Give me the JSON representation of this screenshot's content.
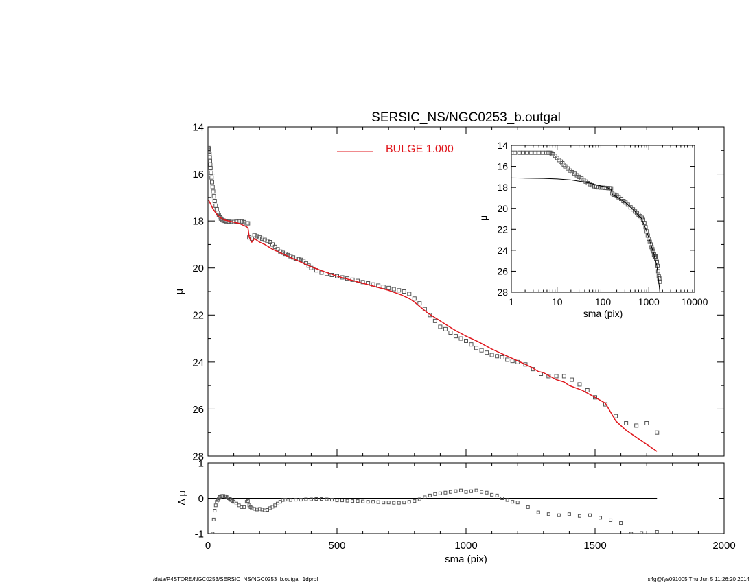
{
  "footer": {
    "path": "/data/P4STORE/NGC0253/SERSIC_NS/NGC0253_b.outgal_1dprof",
    "stamp": "s4g@fys091005  Thu Jun  5 11:26:20 2014"
  },
  "colors": {
    "axes": "#000000",
    "points": "#555555",
    "model": "#e0151b",
    "legend_text": "#e0151b"
  },
  "chart_data": [
    {
      "type": "scatter",
      "title": "SERSIC_NS/NGC0253_b.outgal",
      "xlabel": "",
      "ylabel": "μ",
      "xlim": [
        0,
        2000
      ],
      "ylim": [
        28,
        14
      ],
      "y_reversed": true,
      "x_ticks": [
        0,
        500,
        1000,
        1500,
        2000
      ],
      "y_ticks": [
        14,
        16,
        18,
        20,
        22,
        24,
        26,
        28
      ],
      "show_x_tick_labels": false,
      "grid": false,
      "legend": {
        "placement": "top-center",
        "entries": [
          {
            "label": "BULGE  1.000",
            "color": "#e0151b"
          }
        ]
      },
      "series": [
        {
          "style": "open-square-markers",
          "x": [
            2,
            3,
            4,
            5,
            6,
            7,
            8,
            9,
            10,
            12,
            14,
            16,
            18,
            20,
            23,
            26,
            30,
            34,
            38,
            42,
            46,
            50,
            55,
            60,
            65,
            70,
            80,
            90,
            100,
            110,
            120,
            130,
            140,
            150,
            155,
            160,
            170,
            180,
            190,
            200,
            210,
            220,
            230,
            240,
            250,
            260,
            270,
            280,
            290,
            300,
            310,
            320,
            330,
            340,
            350,
            360,
            370,
            380,
            390,
            400,
            420,
            440,
            460,
            480,
            500,
            520,
            540,
            560,
            580,
            600,
            620,
            640,
            660,
            680,
            700,
            720,
            740,
            760,
            780,
            800,
            820,
            840,
            860,
            880,
            900,
            920,
            940,
            960,
            980,
            1000,
            1020,
            1040,
            1060,
            1080,
            1100,
            1120,
            1140,
            1160,
            1180,
            1200,
            1230,
            1260,
            1290,
            1320,
            1350,
            1380,
            1410,
            1440,
            1470,
            1500,
            1540,
            1580,
            1620,
            1660,
            1700,
            1740
          ],
          "y": [
            14.9,
            14.95,
            15.0,
            15.05,
            15.15,
            15.3,
            15.45,
            15.6,
            15.75,
            15.95,
            16.15,
            16.35,
            16.55,
            16.75,
            16.95,
            17.15,
            17.35,
            17.5,
            17.65,
            17.75,
            17.85,
            17.9,
            17.95,
            17.98,
            18.0,
            18.02,
            18.03,
            18.04,
            18.04,
            18.03,
            18.02,
            18.02,
            18.05,
            18.1,
            18.1,
            18.7,
            18.75,
            18.6,
            18.65,
            18.7,
            18.75,
            18.8,
            18.85,
            18.9,
            19.0,
            19.1,
            19.2,
            19.3,
            19.35,
            19.4,
            19.45,
            19.5,
            19.55,
            19.6,
            19.62,
            19.65,
            19.7,
            19.8,
            19.9,
            20.0,
            20.1,
            20.2,
            20.25,
            20.3,
            20.35,
            20.4,
            20.45,
            20.5,
            20.55,
            20.6,
            20.65,
            20.7,
            20.75,
            20.8,
            20.85,
            20.9,
            20.95,
            21.0,
            21.1,
            21.3,
            21.5,
            21.75,
            22.0,
            22.25,
            22.5,
            22.6,
            22.75,
            22.9,
            23.0,
            23.1,
            23.25,
            23.4,
            23.5,
            23.6,
            23.7,
            23.75,
            23.8,
            23.9,
            23.95,
            24.0,
            24.1,
            24.3,
            24.5,
            24.6,
            24.6,
            24.6,
            24.75,
            24.95,
            25.2,
            25.5,
            25.8,
            26.3,
            26.6,
            26.7,
            26.6,
            27.0
          ]
        },
        {
          "style": "line",
          "color": "#e0151b",
          "name": "BULGE  1.000",
          "x": [
            2,
            20,
            40,
            60,
            80,
            100,
            120,
            140,
            150,
            155,
            160,
            170,
            180,
            200,
            220,
            250,
            280,
            300,
            350,
            400,
            450,
            500,
            550,
            600,
            650,
            700,
            750,
            780,
            800,
            850,
            900,
            950,
            1000,
            1050,
            1100,
            1150,
            1200,
            1250,
            1280,
            1300,
            1350,
            1380,
            1400,
            1450,
            1500,
            1540,
            1580,
            1620,
            1660,
            1700,
            1740
          ],
          "y": [
            17.1,
            17.5,
            17.8,
            17.95,
            18.0,
            18.05,
            18.1,
            18.2,
            18.25,
            18.3,
            18.7,
            18.9,
            18.75,
            18.9,
            19.0,
            19.2,
            19.35,
            19.45,
            19.7,
            19.95,
            20.15,
            20.35,
            20.5,
            20.65,
            20.8,
            20.95,
            21.15,
            21.3,
            21.45,
            21.9,
            22.25,
            22.6,
            22.9,
            23.15,
            23.45,
            23.7,
            23.95,
            24.2,
            24.4,
            24.45,
            24.75,
            24.85,
            25.0,
            25.2,
            25.5,
            25.75,
            26.5,
            26.9,
            27.2,
            27.5,
            27.8
          ]
        }
      ]
    },
    {
      "type": "scatter",
      "title": "",
      "xlabel": "sma (pix)",
      "ylabel": "Δ μ",
      "xlim": [
        0,
        2000
      ],
      "ylim": [
        -1,
        1
      ],
      "x_ticks": [
        0,
        500,
        1000,
        1500,
        2000
      ],
      "y_ticks": [
        -1,
        0,
        1
      ],
      "zero_line": {
        "y": 0,
        "x_range": [
          0,
          1740
        ]
      },
      "grid": false,
      "series": [
        {
          "style": "open-square-markers",
          "x": [
            18,
            22,
            26,
            30,
            34,
            38,
            42,
            46,
            50,
            55,
            60,
            65,
            70,
            75,
            80,
            85,
            90,
            95,
            100,
            110,
            120,
            130,
            140,
            150,
            155,
            160,
            165,
            170,
            180,
            190,
            200,
            210,
            220,
            230,
            240,
            250,
            260,
            270,
            280,
            290,
            300,
            320,
            340,
            360,
            380,
            400,
            420,
            440,
            460,
            480,
            500,
            520,
            540,
            560,
            580,
            600,
            620,
            640,
            660,
            680,
            700,
            720,
            740,
            760,
            780,
            800,
            820,
            840,
            860,
            880,
            900,
            920,
            940,
            960,
            980,
            1000,
            1020,
            1040,
            1060,
            1080,
            1100,
            1120,
            1140,
            1160,
            1180,
            1200,
            1240,
            1280,
            1320,
            1360,
            1400,
            1440,
            1480,
            1520,
            1560,
            1600,
            1640,
            1680,
            1740
          ],
          "y": [
            -1.0,
            -0.6,
            -0.35,
            -0.2,
            -0.1,
            -0.05,
            0.0,
            0.04,
            0.06,
            0.07,
            0.07,
            0.06,
            0.05,
            0.03,
            0.0,
            -0.02,
            -0.05,
            -0.08,
            -0.1,
            -0.15,
            -0.2,
            -0.25,
            -0.25,
            -0.1,
            -0.08,
            -0.2,
            -0.25,
            -0.28,
            -0.3,
            -0.32,
            -0.3,
            -0.32,
            -0.34,
            -0.33,
            -0.28,
            -0.24,
            -0.2,
            -0.15,
            -0.1,
            -0.05,
            -0.04,
            -0.05,
            -0.04,
            -0.04,
            -0.03,
            -0.03,
            -0.02,
            -0.02,
            -0.03,
            -0.04,
            -0.06,
            -0.06,
            -0.07,
            -0.08,
            -0.08,
            -0.09,
            -0.1,
            -0.1,
            -0.11,
            -0.12,
            -0.12,
            -0.13,
            -0.13,
            -0.12,
            -0.1,
            -0.08,
            -0.03,
            0.03,
            0.08,
            0.12,
            0.14,
            0.16,
            0.18,
            0.2,
            0.22,
            0.18,
            0.2,
            0.22,
            0.18,
            0.16,
            0.1,
            0.08,
            0.0,
            -0.05,
            -0.1,
            -0.12,
            -0.25,
            -0.4,
            -0.45,
            -0.48,
            -0.45,
            -0.5,
            -0.48,
            -0.55,
            -0.62,
            -0.7,
            -1.0,
            -0.98,
            -0.95
          ]
        }
      ]
    },
    {
      "type": "scatter",
      "title": "",
      "xlabel": "sma (pix)",
      "ylabel": "μ",
      "x_scale": "log",
      "xlim": [
        1,
        10000
      ],
      "ylim": [
        28,
        14
      ],
      "y_reversed": true,
      "x_ticks": [
        1,
        10,
        100,
        1000,
        10000
      ],
      "y_ticks": [
        14,
        16,
        18,
        20,
        22,
        24,
        26,
        28
      ],
      "grid": false,
      "series": [
        {
          "style": "open-square-markers",
          "x": [
            1.0,
            1.2,
            1.5,
            1.8,
            2.2,
            2.7,
            3.3,
            4.0,
            4.8,
            5.8,
            6.5,
            7.0,
            7.5,
            8.0,
            9.0,
            10,
            11,
            12,
            13,
            14,
            15,
            17,
            19,
            21,
            24,
            27,
            30,
            34,
            38,
            42,
            47,
            52,
            58,
            65,
            72,
            80,
            90,
            100,
            110,
            120,
            130,
            140,
            150,
            160,
            170,
            180,
            200,
            220,
            250,
            280,
            310,
            350,
            400,
            450,
            500,
            550,
            600,
            650,
            700,
            750,
            800,
            850,
            900,
            950,
            1000,
            1050,
            1100,
            1150,
            1200,
            1250,
            1300,
            1350,
            1400,
            1450,
            1500,
            1550,
            1600,
            1650,
            1700,
            1740
          ],
          "y": [
            14.7,
            14.7,
            14.7,
            14.7,
            14.7,
            14.7,
            14.7,
            14.7,
            14.7,
            14.7,
            14.7,
            14.7,
            14.75,
            14.85,
            15.0,
            15.2,
            15.4,
            15.55,
            15.7,
            15.85,
            16.0,
            16.2,
            16.4,
            16.55,
            16.7,
            16.85,
            17.0,
            17.15,
            17.3,
            17.45,
            17.6,
            17.7,
            17.8,
            17.9,
            17.95,
            18.0,
            18.02,
            18.03,
            18.05,
            18.06,
            18.07,
            18.08,
            18.1,
            18.6,
            18.7,
            18.7,
            18.8,
            18.95,
            19.1,
            19.3,
            19.45,
            19.65,
            19.9,
            20.1,
            20.3,
            20.45,
            20.6,
            20.75,
            20.9,
            21.1,
            21.4,
            21.8,
            22.2,
            22.6,
            22.9,
            23.2,
            23.45,
            23.7,
            23.9,
            24.1,
            24.4,
            24.6,
            24.6,
            24.8,
            25.1,
            25.5,
            26.0,
            26.5,
            26.7,
            27.0
          ]
        },
        {
          "style": "line",
          "color": "#000000",
          "x": [
            1,
            2,
            5,
            10,
            20,
            40,
            80,
            120,
            150,
            160,
            200,
            300,
            400,
            500,
            700,
            900,
            1100,
            1300,
            1500,
            1600,
            1700,
            1740
          ],
          "y": [
            17.1,
            17.12,
            17.15,
            17.2,
            17.3,
            17.5,
            17.8,
            18.0,
            18.2,
            18.7,
            18.9,
            19.4,
            19.9,
            20.3,
            21.0,
            22.2,
            23.4,
            24.4,
            25.5,
            26.5,
            27.5,
            28.0
          ]
        }
      ]
    }
  ]
}
